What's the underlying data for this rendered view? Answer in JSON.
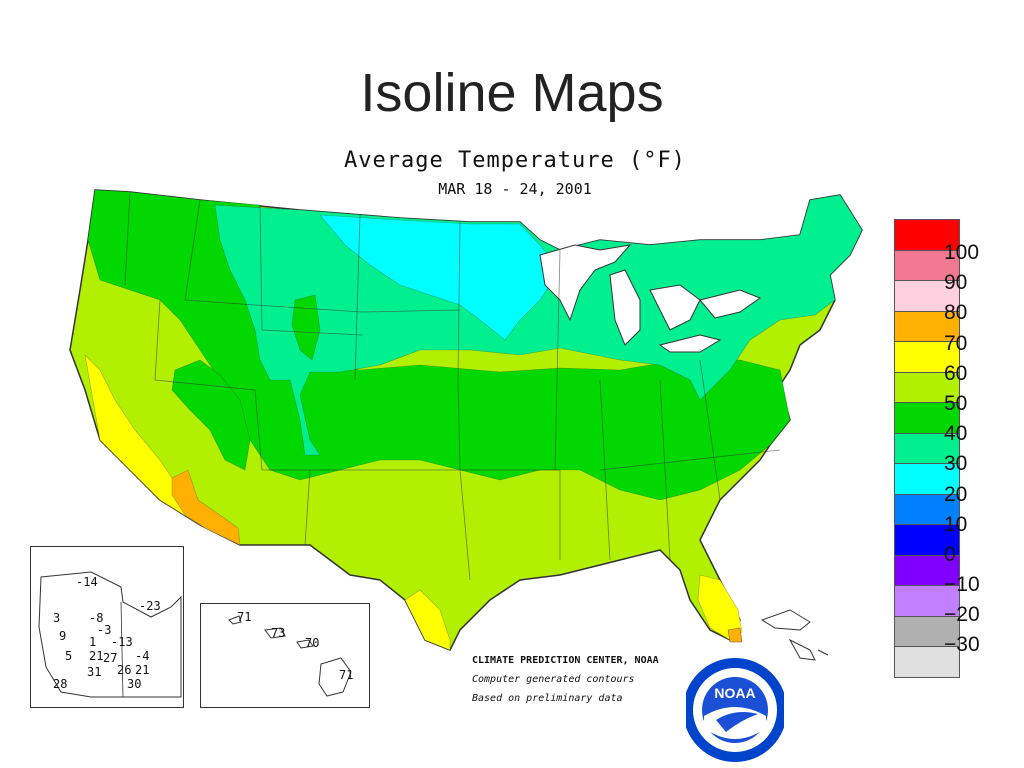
{
  "slide": {
    "title": "Isoline Maps"
  },
  "map": {
    "title": "Average Temperature (°F)",
    "date": "MAR 18 - 24, 2001"
  },
  "legend": {
    "items": [
      {
        "label": "100",
        "color": "#ff0000"
      },
      {
        "label": "90",
        "color": "#f07890"
      },
      {
        "label": "80",
        "color": "#ffd0e0"
      },
      {
        "label": "70",
        "color": "#ffb000"
      },
      {
        "label": "60",
        "color": "#ffff00"
      },
      {
        "label": "50",
        "color": "#b0f000"
      },
      {
        "label": "40",
        "color": "#00d800"
      },
      {
        "label": "30",
        "color": "#00f090"
      },
      {
        "label": "20",
        "color": "#00ffff"
      },
      {
        "label": "10",
        "color": "#0080ff"
      },
      {
        "label": "0",
        "color": "#0000ff"
      },
      {
        "label": "−10",
        "color": "#8000ff"
      },
      {
        "label": "−20",
        "color": "#c080ff"
      },
      {
        "label": "−30",
        "color": "#b0b0b0"
      },
      {
        "label": "",
        "color": "#e0e0e0"
      }
    ]
  },
  "credits": {
    "line1": "CLIMATE PREDICTION CENTER, NOAA",
    "line2": "Computer generated contours",
    "line3": "Based on preliminary data"
  },
  "logo": {
    "text": "NOAA",
    "icon": "noaa-seal-icon"
  },
  "alaska_labels": [
    "-14",
    "-23",
    "3",
    "-8",
    "-3",
    "9",
    "1",
    "-13",
    "5",
    "21",
    "27",
    "-4",
    "26",
    "21",
    "31",
    "28",
    "30"
  ],
  "hawaii_labels": [
    "71",
    "73",
    "70",
    "71"
  ]
}
